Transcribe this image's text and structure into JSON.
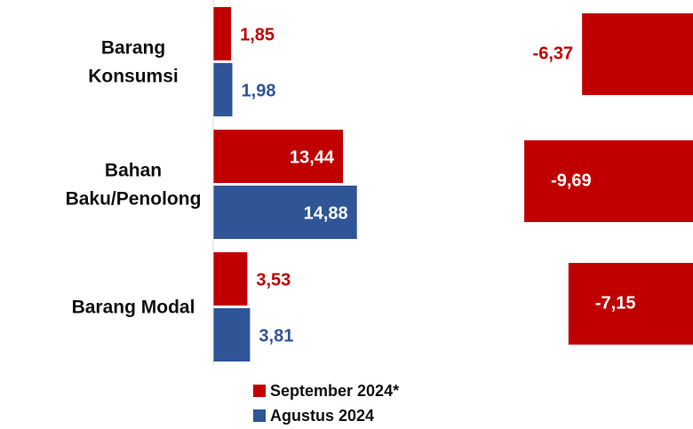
{
  "chart_data": [
    {
      "type": "hbar",
      "categories": [
        "Barang\nKonsumsi",
        "Bahan\nBaku/Penolong",
        "Barang Modal"
      ],
      "xlim": [
        0,
        15
      ],
      "series": [
        {
          "name": "September 2024*",
          "color": "#c00000",
          "values": [
            1.85,
            13.44,
            3.53
          ],
          "value_labels": [
            "1,85",
            "13,44",
            "3,53"
          ]
        },
        {
          "name": "Agustus 2024",
          "color": "#2f5597",
          "values": [
            1.98,
            14.88,
            3.81
          ],
          "value_labels": [
            "1,98",
            "14,88",
            "3,81"
          ]
        }
      ]
    },
    {
      "type": "hbar-neg",
      "xlim": [
        -10,
        0
      ],
      "series": [
        {
          "color": "#c00000",
          "values": [
            -6.37,
            -9.69,
            -7.15
          ],
          "value_labels": [
            "-6,37",
            "-9,69",
            "-7,15"
          ]
        }
      ]
    }
  ]
}
